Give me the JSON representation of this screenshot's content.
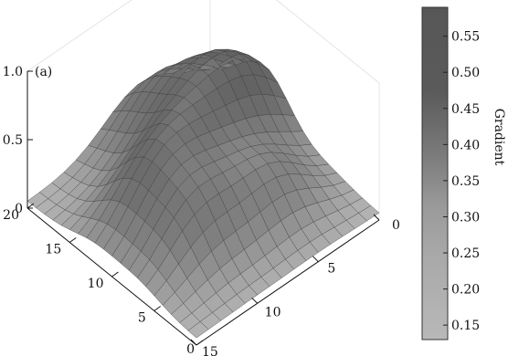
{
  "chart_data": {
    "type": "surface3d",
    "panel_label": "(a)",
    "colorbar_label": "Gradient",
    "x_ticks": [
      "0",
      "5",
      "10",
      "15"
    ],
    "y_ticks": [
      "0",
      "5",
      "10",
      "15",
      "20"
    ],
    "z_ticks": [
      "0",
      "0.5",
      "1.0"
    ],
    "colorbar_ticks": [
      "0.15",
      "0.20",
      "0.25",
      "0.30",
      "0.35",
      "0.40",
      "0.45",
      "0.50",
      "0.55"
    ],
    "colorbar_range": [
      0.13,
      0.59
    ],
    "xlim": [
      0,
      15
    ],
    "ylim": [
      0,
      20
    ],
    "zlim": [
      0,
      1.0
    ],
    "grid_size": [
      16,
      21
    ],
    "surface_base": 0.05,
    "peaks": [
      {
        "x": 2.5,
        "y": 13.5,
        "height": 0.55,
        "width": 3.0
      },
      {
        "x": 7.5,
        "y": 12.0,
        "height": 0.32,
        "width": 2.6
      },
      {
        "x": 6.0,
        "y": 18.0,
        "height": 0.35,
        "width": 2.8
      },
      {
        "x": 11.0,
        "y": 12.0,
        "height": 0.28,
        "width": 2.5
      },
      {
        "x": 5.0,
        "y": 6.0,
        "height": 0.3,
        "width": 2.5
      },
      {
        "x": 10.5,
        "y": 7.0,
        "height": 0.35,
        "width": 2.6
      }
    ]
  }
}
